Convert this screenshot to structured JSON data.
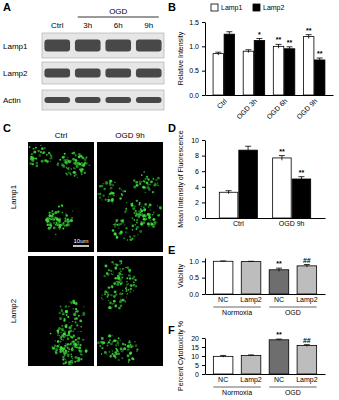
{
  "chart_data": [
    {
      "type": "bar",
      "title": "B",
      "y_label": "Relative Intensity",
      "categories": [
        "Ctrl",
        "OGD 3h",
        "OGD 6h",
        "OGD 9h"
      ],
      "series": [
        {
          "name": "Lamp1",
          "color": "#ffffff",
          "values": [
            0.85,
            0.9,
            1.0,
            1.2
          ],
          "errors": [
            0.03,
            0.03,
            0.04,
            0.04
          ],
          "significance": [
            null,
            null,
            "**",
            "**"
          ]
        },
        {
          "name": "Lamp2",
          "color": "#000000",
          "values": [
            1.25,
            1.12,
            0.95,
            0.72
          ],
          "errors": [
            0.05,
            0.04,
            0.04,
            0.04
          ],
          "significance": [
            null,
            "*",
            "**",
            "**"
          ]
        }
      ],
      "ylim": [
        0,
        1.5
      ],
      "yticks": [
        {
          "value": 0,
          "label": "0.0"
        },
        {
          "value": 0.5,
          "label": "0.5"
        },
        {
          "value": 1,
          "label": "1.0"
        },
        {
          "value": 1.5,
          "label": "1.5"
        }
      ],
      "legend": "top-left"
    },
    {
      "type": "bar",
      "title": "D",
      "y_label": "Mean Intensity of Fluorescence",
      "categories": [
        "Ctrl",
        "OGD 9h"
      ],
      "series": [
        {
          "name": "Lamp1",
          "color": "#ffffff",
          "values": [
            3.3,
            7.7
          ],
          "errors": [
            0.2,
            0.3
          ],
          "significance": [
            null,
            "**"
          ]
        },
        {
          "name": "Lamp2",
          "color": "#000000",
          "values": [
            8.7,
            5.0
          ],
          "errors": [
            0.5,
            0.3
          ],
          "significance": [
            null,
            "**"
          ]
        }
      ],
      "ylim": [
        0,
        10
      ],
      "yticks": [
        0,
        2,
        4,
        6,
        8,
        10
      ]
    },
    {
      "type": "bar",
      "title": "E",
      "y_label": "Viability",
      "categories": [
        "NC",
        "Lamp2",
        "NC",
        "Lamp2"
      ],
      "groups": [
        "Normoxia",
        "OGD"
      ],
      "values": [
        1.0,
        0.99,
        0.74,
        0.86
      ],
      "errors": [
        0.01,
        0.01,
        0.05,
        0.04
      ],
      "significance": [
        null,
        null,
        "**",
        "##"
      ],
      "colors": [
        "#ffffff",
        "#bdbdbd",
        "#6e6e6e",
        "#bdbdbd"
      ],
      "ylim": [
        0,
        1.1
      ],
      "yticks": [
        {
          "value": 0,
          "label": "0.0"
        },
        {
          "value": 0.5,
          "label": "0.5"
        },
        {
          "value": 1,
          "label": "1.0"
        }
      ]
    },
    {
      "type": "bar",
      "title": "F",
      "y_label": "Percent Cytotoxicity %",
      "categories": [
        "NC",
        "Lamp2",
        "NC",
        "Lamp2"
      ],
      "groups": [
        "Normoxia",
        "OGD"
      ],
      "values": [
        9.8,
        10.3,
        19.0,
        15.8
      ],
      "errors": [
        0.5,
        0.3,
        0.4,
        0.5
      ],
      "significance": [
        null,
        null,
        "**",
        "##"
      ],
      "colors": [
        "#ffffff",
        "#bdbdbd",
        "#6e6e6e",
        "#bdbdbd"
      ],
      "ylim": [
        0,
        20
      ],
      "yticks": [
        0,
        5,
        10,
        15,
        20
      ]
    }
  ],
  "blot": {
    "title": "A",
    "group_label": "OGD",
    "lanes": [
      "Ctrl",
      "3h",
      "6h",
      "9h"
    ],
    "rows": [
      "Lamp1",
      "Lamp2",
      "Actin"
    ]
  },
  "images": {
    "title": "C",
    "columns": [
      "Ctrl",
      "OGD 9h"
    ],
    "rows": [
      "Lamp1",
      "Lamp2"
    ],
    "scale_bar": "10um"
  }
}
